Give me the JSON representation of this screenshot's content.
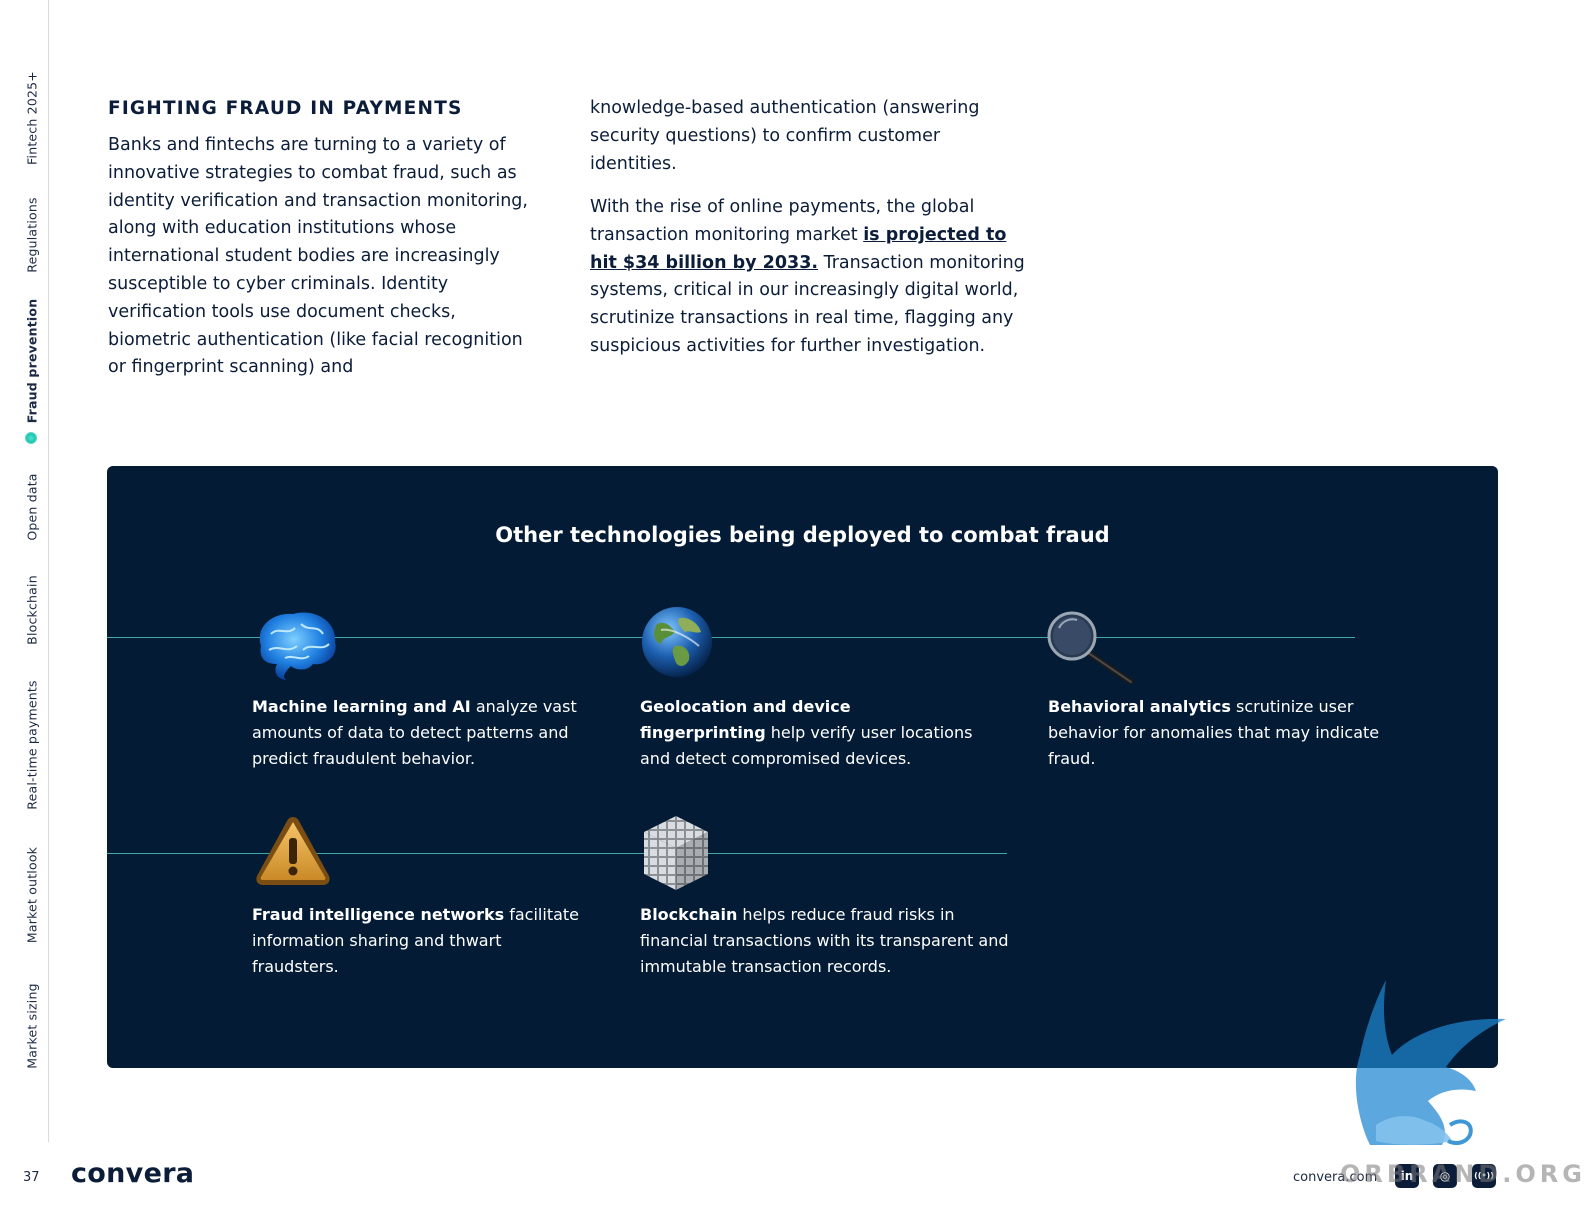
{
  "sidebar": {
    "items": [
      {
        "label": "Fintech 2025+"
      },
      {
        "label": "Regulations"
      },
      {
        "label": "Fraud prevention",
        "active": true
      },
      {
        "label": "Open data"
      },
      {
        "label": "Blockchain"
      },
      {
        "label": "Real-time payments"
      },
      {
        "label": "Market outlook"
      },
      {
        "label": "Market sizing"
      }
    ],
    "active_color": "#1fc6b0"
  },
  "article": {
    "heading": "FIGHTING FRAUD IN PAYMENTS",
    "col1": "Banks and fintechs are turning to a variety of innovative strategies to combat fraud, such as identity verification and transaction monitoring, along with education institutions whose international student bodies are increasingly susceptible to cyber criminals. Identity verification tools use document checks, biometric authentication (like facial recognition or fingerprint scanning) and",
    "col2_para1": "knowledge-based authentication (answering security questions) to confirm customer identities.",
    "col2_para2_before": "With the rise of online payments, the global transaction monitoring market ",
    "col2_para2_link": "is projected to hit $34 billion by 2033.",
    "col2_para2_after": " Transaction monitoring systems, critical in our increasingly digital world, scrutinize transactions in real time, flagging any suspicious activities for further investigation."
  },
  "panel": {
    "title": "Other technologies being deployed to combat fraud",
    "background": "#031b35",
    "technologies": [
      {
        "icon": "brain-icon",
        "bold": "Machine learning and AI",
        "text": " analyze vast amounts of data to detect patterns and predict fraudulent behavior."
      },
      {
        "icon": "globe-icon",
        "bold": "Geolocation and device fingerprinting",
        "text": " help verify user locations and detect compromised devices."
      },
      {
        "icon": "magnifier-icon",
        "bold": "Behavioral analytics",
        "text": " scrutinize user behavior for anomalies that may indicate fraud."
      },
      {
        "icon": "warning-icon",
        "bold": "Fraud intelligence networks",
        "text": " facilitate information sharing and thwart fraudsters."
      },
      {
        "icon": "blockchain-cubes-icon",
        "bold": "Blockchain",
        "text": " helps reduce fraud risks in financial transactions with its transparent and immutable transaction records."
      }
    ]
  },
  "footer": {
    "page_number": "37",
    "logo_text": "convera",
    "url": "convera.com",
    "social": [
      {
        "icon": "linkedin-icon",
        "label": "in"
      },
      {
        "icon": "instagram-icon",
        "label": "◎"
      },
      {
        "icon": "podcast-icon",
        "label": "((•))"
      }
    ],
    "watermark_text": "ORBRAND.ORG"
  }
}
